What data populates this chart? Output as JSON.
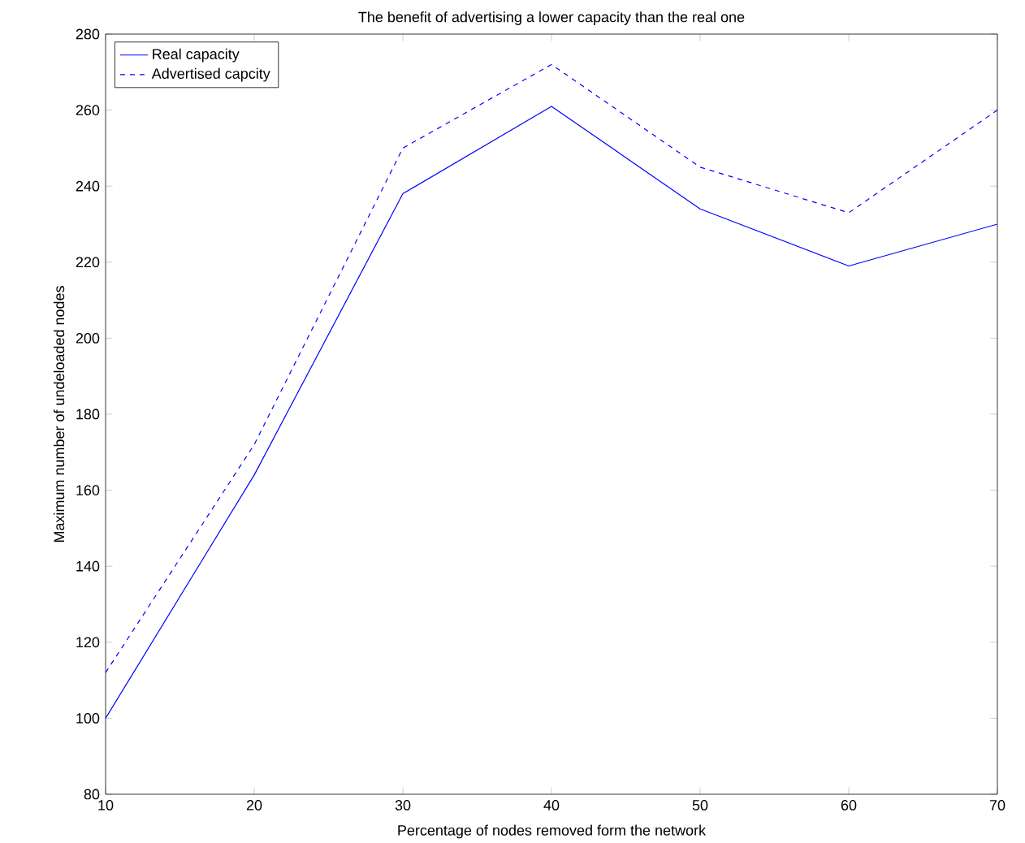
{
  "chart_data": {
    "type": "line",
    "title": "The benefit of advertising a lower capacity than the real one",
    "xlabel": "Percentage of nodes removed form the network",
    "ylabel": "Maximum number of undeloaded nodes",
    "x": [
      10,
      20,
      30,
      40,
      50,
      60,
      70
    ],
    "series": [
      {
        "name": "Real capacity",
        "color": "#0000ff",
        "line_style": "solid",
        "values": [
          100,
          164,
          238,
          261,
          234,
          219,
          230
        ]
      },
      {
        "name": "Advertised capcity",
        "color": "#0000ff",
        "line_style": "dashed",
        "values": [
          112,
          172,
          250,
          272,
          245,
          233,
          260
        ]
      }
    ],
    "xlim": [
      10,
      70
    ],
    "ylim": [
      80,
      280
    ],
    "xticks": [
      10,
      20,
      30,
      40,
      50,
      60,
      70
    ],
    "yticks": [
      80,
      100,
      120,
      140,
      160,
      180,
      200,
      220,
      240,
      260,
      280
    ],
    "grid": false,
    "legend": "top left",
    "marker": "none"
  }
}
